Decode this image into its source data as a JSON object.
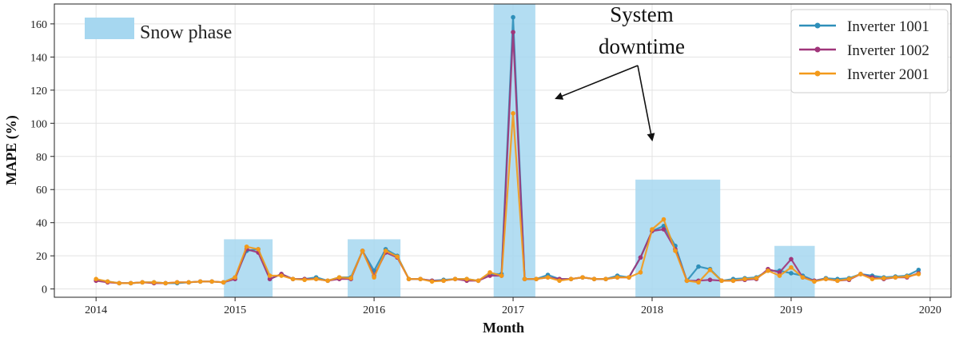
{
  "chart_data": {
    "type": "line",
    "title": "",
    "xlabel": "Month",
    "ylabel": "MAPE (%)",
    "xlim": [
      2013.7,
      2020.15
    ],
    "ylim": [
      -5,
      172
    ],
    "x_ticks": [
      2014,
      2015,
      2016,
      2017,
      2018,
      2019,
      2020
    ],
    "x_tick_labels": [
      "2014",
      "2015",
      "2016",
      "2017",
      "2018",
      "2019",
      "2020"
    ],
    "y_ticks": [
      0,
      20,
      40,
      60,
      80,
      100,
      120,
      140,
      160
    ],
    "y_tick_labels": [
      "0",
      "20",
      "40",
      "60",
      "80",
      "100",
      "120",
      "140",
      "160"
    ],
    "grid": true,
    "legend_position": "top-right",
    "snow_label": "Snow phase",
    "snow_color": "#a6d7f0",
    "snow_phases": [
      {
        "start": 2014.92,
        "end": 2015.27,
        "ymax": 30
      },
      {
        "start": 2015.81,
        "end": 2016.19,
        "ymax": 30
      },
      {
        "start": 2016.86,
        "end": 2017.16,
        "ymax": 172
      },
      {
        "start": 2017.88,
        "end": 2018.49,
        "ymax": 66
      },
      {
        "start": 2018.88,
        "end": 2019.17,
        "ymax": 26
      }
    ],
    "annotation": {
      "line1": "System",
      "line2": "downtime",
      "targets": [
        [
          2017.31,
          115
        ],
        [
          2018.0,
          90
        ]
      ]
    },
    "series": [
      {
        "name": "Inverter 1001",
        "color": "#2e8fb9",
        "values": [
          5.5,
          4.5,
          3.5,
          3.5,
          4,
          4,
          3.5,
          3.5,
          4,
          4.5,
          4.5,
          4,
          7,
          23,
          24,
          6,
          9,
          6,
          6,
          7,
          5,
          7,
          7,
          23,
          11,
          24,
          20,
          6,
          6,
          5,
          5.5,
          6,
          6,
          5,
          9,
          9,
          164,
          6,
          6,
          8.5,
          6,
          6,
          7,
          6,
          6,
          8,
          7,
          19,
          35,
          38,
          26,
          5,
          13.5,
          12,
          5,
          6,
          6.5,
          7,
          11,
          11,
          9.5,
          8,
          5,
          6.5,
          6,
          6.5,
          9,
          8,
          7,
          7.5,
          8,
          11.5
        ]
      },
      {
        "name": "Inverter 1002",
        "color": "#a0357a",
        "values": [
          5,
          4,
          3.5,
          3.5,
          4,
          3.5,
          3.5,
          4,
          4,
          4.5,
          4.5,
          4,
          6,
          24,
          22,
          6,
          9,
          6,
          6,
          6,
          5,
          6,
          6,
          23,
          8,
          22,
          19,
          6,
          6,
          5,
          5,
          6,
          5,
          5,
          8,
          8,
          155,
          6,
          6,
          7,
          6,
          6,
          7,
          6,
          6,
          7,
          7,
          19,
          35,
          36,
          24,
          5,
          5,
          5.5,
          5,
          5,
          5.5,
          6,
          12,
          10,
          18,
          7,
          5,
          6,
          5,
          5.5,
          9,
          7,
          6,
          7,
          7,
          9.5
        ]
      },
      {
        "name": "Inverter 2001",
        "color": "#f39a1a",
        "values": [
          6,
          4.5,
          3.5,
          3.5,
          4,
          4,
          3.5,
          4,
          4,
          4.5,
          4.5,
          4,
          7,
          25.5,
          24,
          8,
          8,
          6,
          5.5,
          6,
          5,
          7,
          6.5,
          23,
          7,
          23,
          19.5,
          6,
          6,
          4.5,
          5,
          6,
          6,
          5,
          10,
          8,
          106,
          6,
          6,
          7,
          5,
          6,
          7,
          6,
          6,
          7,
          7,
          10,
          36,
          42,
          23,
          5,
          4,
          11.5,
          5,
          5,
          6,
          6.5,
          11,
          8,
          13,
          7,
          4.5,
          6,
          5,
          6,
          9,
          6,
          6.5,
          7,
          7.5,
          9
        ]
      }
    ]
  }
}
